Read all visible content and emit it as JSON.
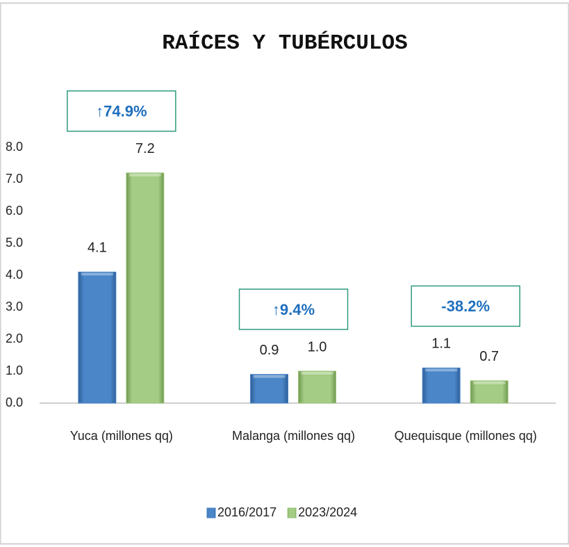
{
  "chart_data": {
    "type": "bar",
    "title": "RAÍCES Y TUBÉRCULOS",
    "categories": [
      "Yuca (millones qq)",
      "Malanga (millones qq)",
      "Quequisque (millones qq)"
    ],
    "series": [
      {
        "name": "2016/2017",
        "color": "#4a86c8",
        "values": [
          4.1,
          0.9,
          1.1
        ],
        "value_labels": [
          "4.1",
          "0.9",
          "1.1"
        ]
      },
      {
        "name": "2023/2024",
        "color": "#9bc47a",
        "values": [
          7.2,
          1.0,
          0.7
        ],
        "value_labels": [
          "7.2",
          "1.0",
          "0.7"
        ]
      }
    ],
    "annotations": [
      "↑74.9%",
      "↑9.4%",
      "-38.2%"
    ],
    "ylim": [
      0,
      8
    ],
    "yticks": [
      {
        "value": 0,
        "label": "0.0"
      },
      {
        "value": 1,
        "label": "1.0"
      },
      {
        "value": 2,
        "label": "2.0"
      },
      {
        "value": 3,
        "label": "3.0"
      },
      {
        "value": 4,
        "label": "4.0"
      },
      {
        "value": 5,
        "label": "5.0"
      },
      {
        "value": 6,
        "label": "6.0"
      },
      {
        "value": 7,
        "label": "7.0"
      },
      {
        "value": 8,
        "label": "8.0"
      }
    ],
    "grid": false,
    "legend": "bottom"
  }
}
